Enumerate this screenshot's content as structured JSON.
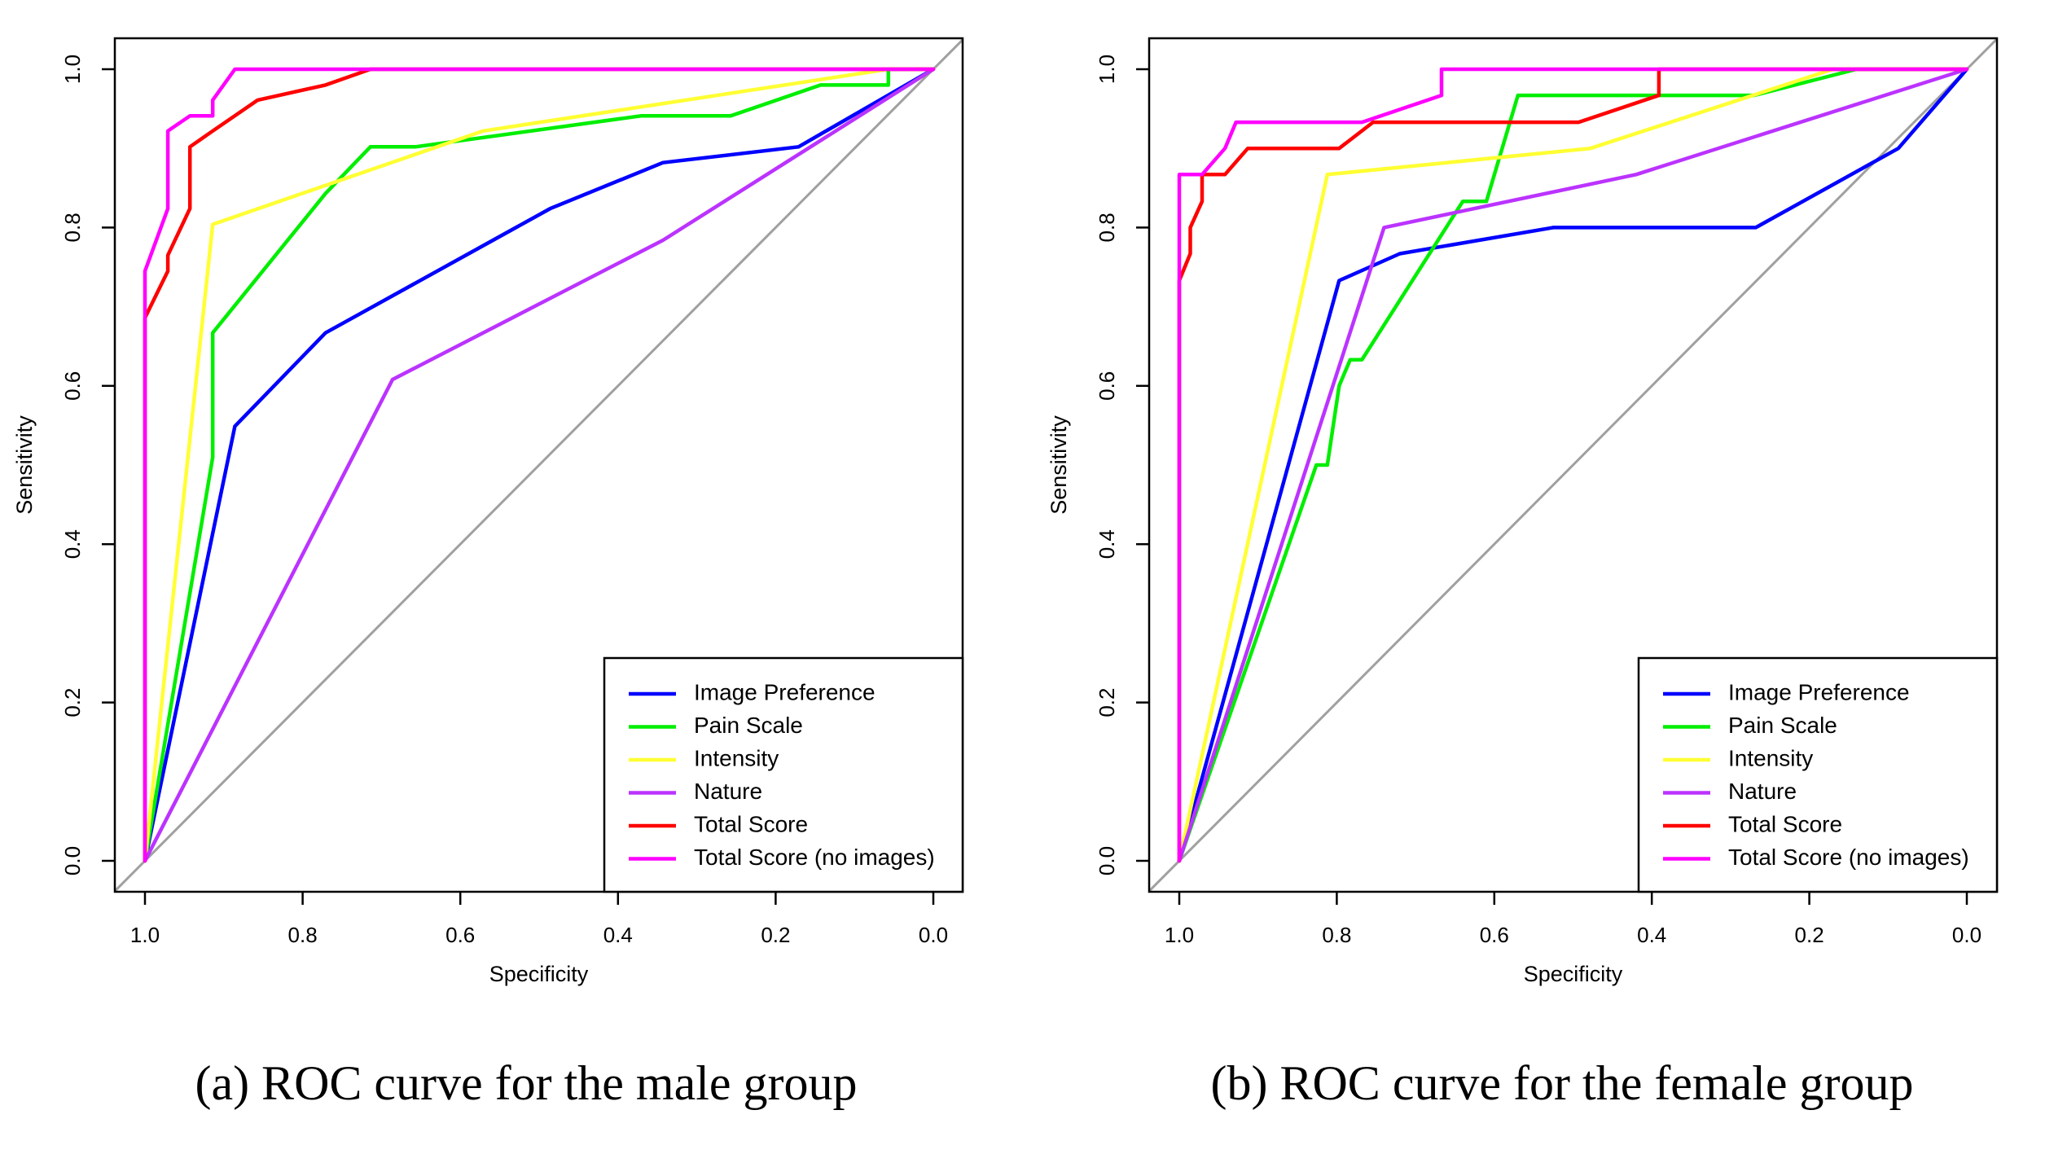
{
  "chart_data": [
    {
      "type": "line",
      "caption": "(a) ROC curve for the male group",
      "xlabel": "Specificity",
      "ylabel": "Sensitivity",
      "xlim": [
        1.0,
        0.0
      ],
      "ylim": [
        0.0,
        1.0
      ],
      "xticks": [
        {
          "value": 1.0,
          "label": "1.0"
        },
        {
          "value": 0.8,
          "label": "0.8"
        },
        {
          "value": 0.6,
          "label": "0.6"
        },
        {
          "value": 0.4,
          "label": "0.4"
        },
        {
          "value": 0.2,
          "label": "0.2"
        },
        {
          "value": 0.0,
          "label": "0.0"
        }
      ],
      "yticks": [
        {
          "value": 0.0,
          "label": "0.0"
        },
        {
          "value": 0.2,
          "label": "0.2"
        },
        {
          "value": 0.4,
          "label": "0.4"
        },
        {
          "value": 0.6,
          "label": "0.6"
        },
        {
          "value": 0.8,
          "label": "0.8"
        },
        {
          "value": 1.0,
          "label": "1.0"
        }
      ],
      "grid": false,
      "legend_position": "bottom-right",
      "reference_line": {
        "from": [
          1.0,
          0.0
        ],
        "to": [
          0.0,
          1.0
        ],
        "color": "#a0a0a0"
      },
      "series": [
        {
          "name": "Image Preference",
          "color": "#0000ff",
          "x": [
            1.0,
            0.886,
            0.771,
            0.486,
            0.343,
            0.171,
            0.0
          ],
          "y": [
            0.0,
            0.549,
            0.667,
            0.824,
            0.882,
            0.902,
            1.0
          ]
        },
        {
          "name": "Pain Scale",
          "color": "#00ee00",
          "x": [
            1.0,
            0.914,
            0.914,
            0.771,
            0.714,
            0.657,
            0.371,
            0.257,
            0.143,
            0.057,
            0.057,
            0.0
          ],
          "y": [
            0.0,
            0.51,
            0.667,
            0.843,
            0.902,
            0.902,
            0.941,
            0.941,
            0.98,
            0.98,
            1.0,
            1.0
          ]
        },
        {
          "name": "Intensity",
          "color": "#ffff33",
          "x": [
            1.0,
            0.914,
            0.571,
            0.057,
            0.0
          ],
          "y": [
            0.0,
            0.804,
            0.922,
            1.0,
            1.0
          ]
        },
        {
          "name": "Nature",
          "color": "#bb33ff",
          "x": [
            1.0,
            0.686,
            0.343,
            0.0
          ],
          "y": [
            0.0,
            0.608,
            0.784,
            1.0
          ]
        },
        {
          "name": "Total Score",
          "color": "#ff0000",
          "x": [
            1.0,
            1.0,
            0.971,
            0.971,
            0.943,
            0.943,
            0.914,
            0.857,
            0.771,
            0.714,
            0.0
          ],
          "y": [
            0.0,
            0.686,
            0.745,
            0.765,
            0.824,
            0.902,
            0.922,
            0.961,
            0.98,
            1.0,
            1.0
          ]
        },
        {
          "name": "Total Score (no images)",
          "color": "#ff00ff",
          "x": [
            1.0,
            1.0,
            0.971,
            0.971,
            0.943,
            0.914,
            0.914,
            0.886,
            0.0
          ],
          "y": [
            0.0,
            0.745,
            0.824,
            0.922,
            0.941,
            0.941,
            0.961,
            1.0,
            1.0
          ]
        }
      ]
    },
    {
      "type": "line",
      "caption": "(b) ROC curve for the female group",
      "xlabel": "Specificity",
      "ylabel": "Sensitivity",
      "xlim": [
        1.0,
        0.0
      ],
      "ylim": [
        0.0,
        1.0
      ],
      "xticks": [
        {
          "value": 1.0,
          "label": "1.0"
        },
        {
          "value": 0.8,
          "label": "0.8"
        },
        {
          "value": 0.6,
          "label": "0.6"
        },
        {
          "value": 0.4,
          "label": "0.4"
        },
        {
          "value": 0.2,
          "label": "0.2"
        },
        {
          "value": 0.0,
          "label": "0.0"
        }
      ],
      "yticks": [
        {
          "value": 0.0,
          "label": "0.0"
        },
        {
          "value": 0.2,
          "label": "0.2"
        },
        {
          "value": 0.4,
          "label": "0.4"
        },
        {
          "value": 0.6,
          "label": "0.6"
        },
        {
          "value": 0.8,
          "label": "0.8"
        },
        {
          "value": 1.0,
          "label": "1.0"
        }
      ],
      "grid": false,
      "legend_position": "bottom-right",
      "reference_line": {
        "from": [
          1.0,
          0.0
        ],
        "to": [
          0.0,
          1.0
        ],
        "color": "#a0a0a0"
      },
      "series": [
        {
          "name": "Image Preference",
          "color": "#0000ff",
          "x": [
            1.0,
            0.797,
            0.72,
            0.525,
            0.268,
            0.087,
            0.0
          ],
          "y": [
            0.0,
            0.733,
            0.767,
            0.8,
            0.8,
            0.9,
            1.0
          ]
        },
        {
          "name": "Pain Scale",
          "color": "#00ee00",
          "x": [
            1.0,
            0.826,
            0.812,
            0.797,
            0.783,
            0.768,
            0.64,
            0.61,
            0.57,
            0.27,
            0.14,
            0.0
          ],
          "y": [
            0.0,
            0.5,
            0.5,
            0.6,
            0.633,
            0.633,
            0.833,
            0.833,
            0.967,
            0.967,
            1.0,
            1.0
          ]
        },
        {
          "name": "Intensity",
          "color": "#ffff33",
          "x": [
            1.0,
            0.812,
            0.478,
            0.17,
            0.0
          ],
          "y": [
            0.0,
            0.867,
            0.9,
            1.0,
            1.0
          ]
        },
        {
          "name": "Nature",
          "color": "#bb33ff",
          "x": [
            1.0,
            0.74,
            0.42,
            0.0
          ],
          "y": [
            0.0,
            0.8,
            0.867,
            1.0
          ]
        },
        {
          "name": "Total Score",
          "color": "#ff0000",
          "x": [
            1.0,
            1.0,
            0.986,
            0.986,
            0.971,
            0.971,
            0.942,
            0.913,
            0.855,
            0.797,
            0.754,
            0.754,
            0.493,
            0.391,
            0.391,
            0.0
          ],
          "y": [
            0.0,
            0.733,
            0.767,
            0.8,
            0.833,
            0.867,
            0.867,
            0.9,
            0.9,
            0.9,
            0.933,
            0.933,
            0.933,
            0.967,
            1.0,
            1.0
          ]
        },
        {
          "name": "Total Score (no images)",
          "color": "#ff00ff",
          "x": [
            1.0,
            1.0,
            0.971,
            0.942,
            0.942,
            0.928,
            0.768,
            0.667,
            0.667,
            0.0
          ],
          "y": [
            0.0,
            0.867,
            0.867,
            0.9,
            0.9,
            0.933,
            0.933,
            0.967,
            1.0,
            1.0
          ]
        }
      ]
    }
  ]
}
